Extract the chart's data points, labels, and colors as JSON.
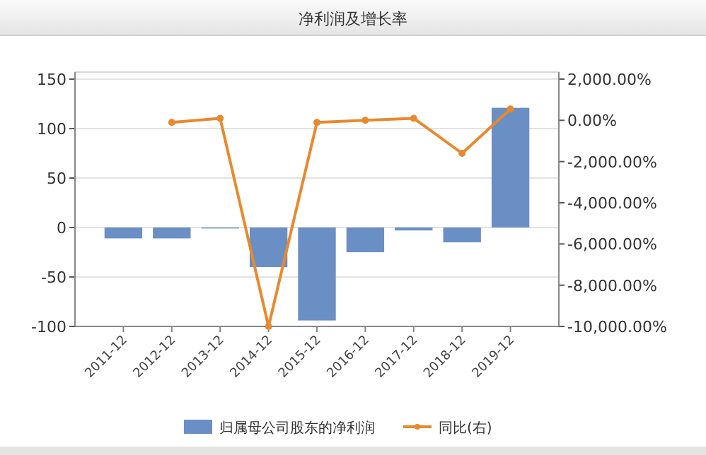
{
  "chart_data": {
    "type": "bar",
    "title": "净利润及增长率",
    "categories": [
      "2011-12",
      "2012-12",
      "2013-12",
      "2014-12",
      "2015-12",
      "2016-12",
      "2017-12",
      "2018-12",
      "2019-12"
    ],
    "series": [
      {
        "name": "归属母公司股东的净利润",
        "color": "#6a8fc4",
        "values": [
          -11,
          -11,
          -1,
          -40,
          -94,
          -25,
          -3,
          -15,
          121
        ]
      },
      {
        "name": "同比(右)",
        "type": "line",
        "axis": "y2",
        "color": "#e8892e",
        "values": [
          null,
          -100,
          100,
          -10000,
          -100,
          0,
          100,
          -1600,
          550
        ]
      }
    ],
    "ylim": [
      -100,
      150
    ],
    "yticks": [
      -100,
      -50,
      0,
      50,
      100,
      150
    ],
    "y2lim": [
      -10000,
      2000
    ],
    "y2ticks": [
      {
        "value": -10000,
        "label": "-10,000.00%"
      },
      {
        "value": -8000,
        "label": "-8,000.00%"
      },
      {
        "value": -6000,
        "label": "-6,000.00%"
      },
      {
        "value": -4000,
        "label": "-4,000.00%"
      },
      {
        "value": -2000,
        "label": "-2,000.00%"
      },
      {
        "value": 0,
        "label": "0.00%"
      },
      {
        "value": 2000,
        "label": "2,000.00%"
      }
    ],
    "grid": "y",
    "legend": "bottom",
    "marker": "circle"
  }
}
